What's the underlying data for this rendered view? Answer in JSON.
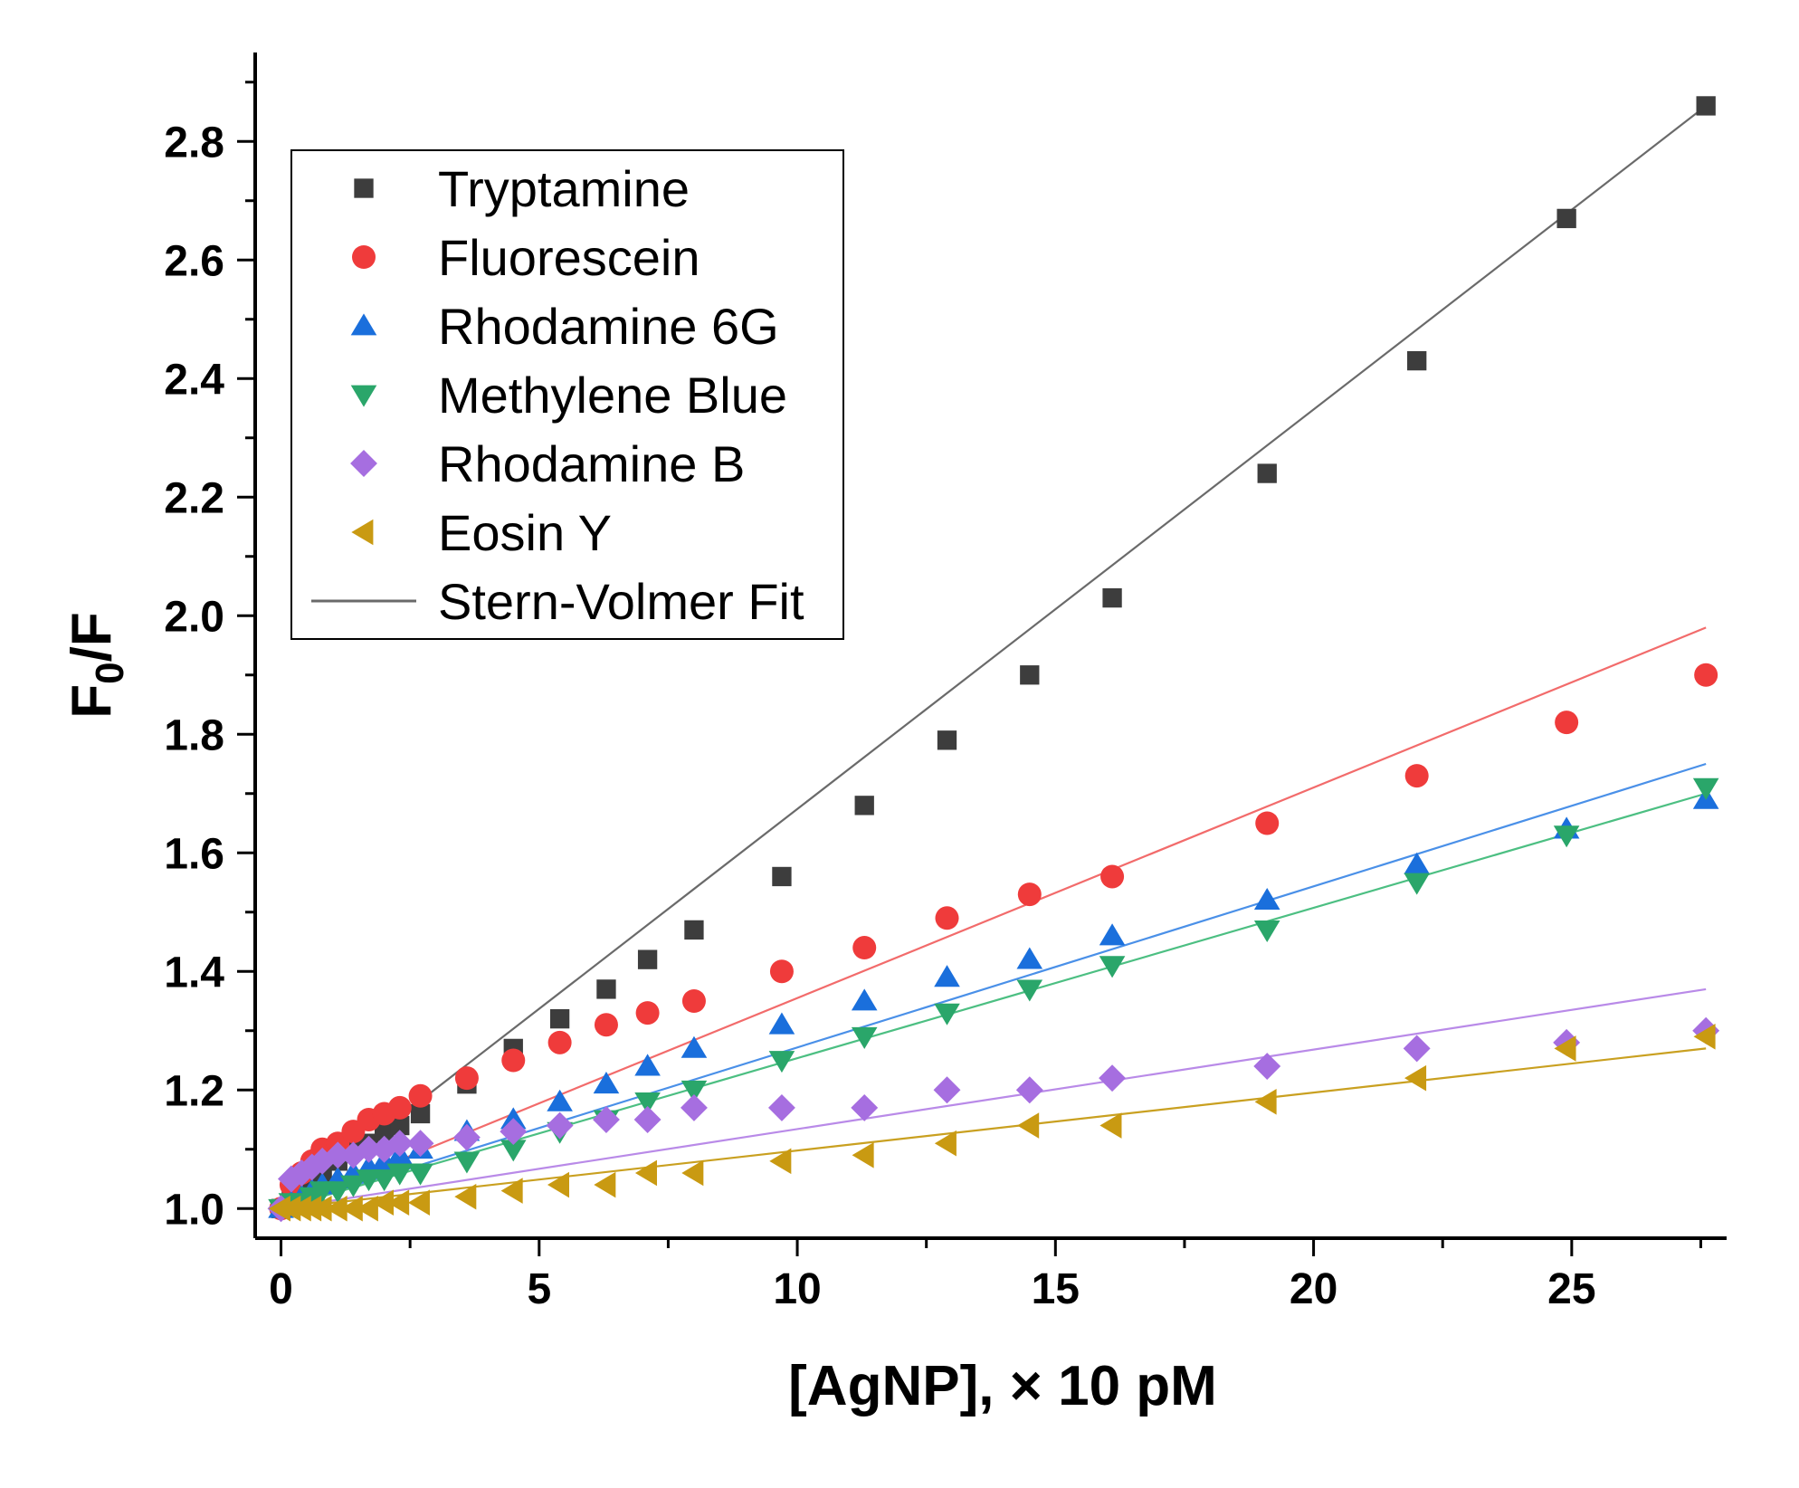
{
  "chart_data": {
    "type": "scatter",
    "title": "",
    "xlabel": "[AgNP], × 10 pM",
    "ylabel_main": "F",
    "ylabel_sub": "0",
    "ylabel_tail": "/F",
    "xlim": [
      -0.5,
      28
    ],
    "ylim": [
      0.95,
      2.95
    ],
    "x_ticks": [
      0,
      5,
      10,
      15,
      20,
      25
    ],
    "x_tick_labels": [
      "0",
      "5",
      "10",
      "15",
      "20",
      "25"
    ],
    "y_ticks": [
      1.0,
      1.2,
      1.4,
      1.6,
      1.8,
      2.0,
      2.2,
      2.4,
      2.6,
      2.8
    ],
    "y_tick_labels": [
      "1.0",
      "1.2",
      "1.4",
      "1.6",
      "1.8",
      "2.0",
      "2.2",
      "2.4",
      "2.6",
      "2.8"
    ],
    "legend_position": "top-left",
    "fit_label": "Stern-Volmer Fit",
    "fit_color": "#6a6a6a",
    "series": [
      {
        "name": "Tryptamine",
        "marker": "square",
        "color": "#3d3d3d",
        "fit_color": "#6a6a6a",
        "fit": [
          [
            0,
            1.0
          ],
          [
            27.6,
            2.86
          ]
        ],
        "x": [
          0,
          0.2,
          0.4,
          0.6,
          0.8,
          1.1,
          1.4,
          1.7,
          2.0,
          2.3,
          2.7,
          3.6,
          4.5,
          5.4,
          6.3,
          7.1,
          8.0,
          9.7,
          11.3,
          12.9,
          14.5,
          16.1,
          19.1,
          22.0,
          24.9,
          27.6
        ],
        "y": [
          1.0,
          1.02,
          1.03,
          1.05,
          1.06,
          1.08,
          1.1,
          1.11,
          1.13,
          1.14,
          1.16,
          1.21,
          1.27,
          1.32,
          1.37,
          1.42,
          1.47,
          1.56,
          1.68,
          1.79,
          1.9,
          2.03,
          2.24,
          2.43,
          2.67,
          2.86
        ]
      },
      {
        "name": "Fluorescein",
        "marker": "circle",
        "color": "#ef3b3b",
        "fit_color": "#f26b6b",
        "fit": [
          [
            0,
            1.0
          ],
          [
            27.6,
            1.98
          ]
        ],
        "x": [
          0,
          0.2,
          0.4,
          0.6,
          0.8,
          1.1,
          1.4,
          1.7,
          2.0,
          2.3,
          2.7,
          3.6,
          4.5,
          5.4,
          6.3,
          7.1,
          8.0,
          9.7,
          11.3,
          12.9,
          14.5,
          16.1,
          19.1,
          22.0,
          24.9,
          27.6
        ],
        "y": [
          1.0,
          1.04,
          1.06,
          1.08,
          1.1,
          1.11,
          1.13,
          1.15,
          1.16,
          1.17,
          1.19,
          1.22,
          1.25,
          1.28,
          1.31,
          1.33,
          1.35,
          1.4,
          1.44,
          1.49,
          1.53,
          1.56,
          1.65,
          1.73,
          1.82,
          1.9
        ]
      },
      {
        "name": "Rhodamine 6G",
        "marker": "triangle-up",
        "color": "#1a6fdc",
        "fit_color": "#4a90e8",
        "fit": [
          [
            0,
            1.0
          ],
          [
            27.6,
            1.75
          ]
        ],
        "x": [
          0,
          0.2,
          0.4,
          0.6,
          0.8,
          1.1,
          1.4,
          1.7,
          2.0,
          2.3,
          2.7,
          3.6,
          4.5,
          5.4,
          6.3,
          7.1,
          8.0,
          9.7,
          11.3,
          12.9,
          14.5,
          16.1,
          19.1,
          22.0,
          24.9,
          27.6
        ],
        "y": [
          1.0,
          1.01,
          1.02,
          1.03,
          1.04,
          1.05,
          1.06,
          1.07,
          1.08,
          1.09,
          1.1,
          1.13,
          1.15,
          1.18,
          1.21,
          1.24,
          1.27,
          1.31,
          1.35,
          1.39,
          1.42,
          1.46,
          1.52,
          1.58,
          1.64,
          1.69
        ]
      },
      {
        "name": "Methylene Blue",
        "marker": "triangle-down",
        "color": "#2aa66a",
        "fit_color": "#4cbf82",
        "fit": [
          [
            0,
            1.0
          ],
          [
            27.6,
            1.7
          ]
        ],
        "x": [
          0,
          0.2,
          0.4,
          0.6,
          0.8,
          1.1,
          1.4,
          1.7,
          2.0,
          2.3,
          2.7,
          3.6,
          4.5,
          5.4,
          6.3,
          7.1,
          8.0,
          9.7,
          11.3,
          12.9,
          14.5,
          16.1,
          19.1,
          22.0,
          24.9,
          27.6
        ],
        "y": [
          1.0,
          1.01,
          1.01,
          1.02,
          1.03,
          1.03,
          1.04,
          1.05,
          1.05,
          1.06,
          1.06,
          1.08,
          1.1,
          1.13,
          1.15,
          1.18,
          1.2,
          1.25,
          1.29,
          1.33,
          1.37,
          1.41,
          1.47,
          1.55,
          1.63,
          1.71
        ]
      },
      {
        "name": "Rhodamine B",
        "marker": "diamond",
        "color": "#a66ee0",
        "fit_color": "#b98ae8",
        "fit": [
          [
            0,
            1.0
          ],
          [
            27.6,
            1.37
          ]
        ],
        "x": [
          0,
          0.2,
          0.4,
          0.6,
          0.8,
          1.1,
          1.4,
          1.7,
          2.0,
          2.3,
          2.7,
          3.6,
          4.5,
          5.4,
          6.3,
          7.1,
          8.0,
          9.7,
          11.3,
          12.9,
          14.5,
          16.1,
          19.1,
          22.0,
          24.9,
          27.6
        ],
        "y": [
          1.0,
          1.05,
          1.06,
          1.07,
          1.08,
          1.09,
          1.09,
          1.1,
          1.1,
          1.11,
          1.11,
          1.12,
          1.13,
          1.14,
          1.15,
          1.15,
          1.17,
          1.17,
          1.17,
          1.2,
          1.2,
          1.22,
          1.24,
          1.27,
          1.28,
          1.3
        ]
      },
      {
        "name": "Eosin Y",
        "marker": "triangle-left",
        "color": "#c99a12",
        "fit_color": "#c9a020",
        "fit": [
          [
            0,
            1.0
          ],
          [
            27.6,
            1.27
          ]
        ],
        "x": [
          0,
          0.2,
          0.4,
          0.6,
          0.8,
          1.1,
          1.4,
          1.7,
          2.0,
          2.3,
          2.7,
          3.6,
          4.5,
          5.4,
          6.3,
          7.1,
          8.0,
          9.7,
          11.3,
          12.9,
          14.5,
          16.1,
          19.1,
          22.0,
          24.9,
          27.6
        ],
        "y": [
          1.0,
          1.0,
          1.0,
          1.0,
          1.0,
          1.0,
          1.0,
          1.0,
          1.01,
          1.01,
          1.01,
          1.02,
          1.03,
          1.04,
          1.04,
          1.06,
          1.06,
          1.08,
          1.09,
          1.11,
          1.14,
          1.14,
          1.18,
          1.22,
          1.27,
          1.29
        ]
      }
    ]
  }
}
